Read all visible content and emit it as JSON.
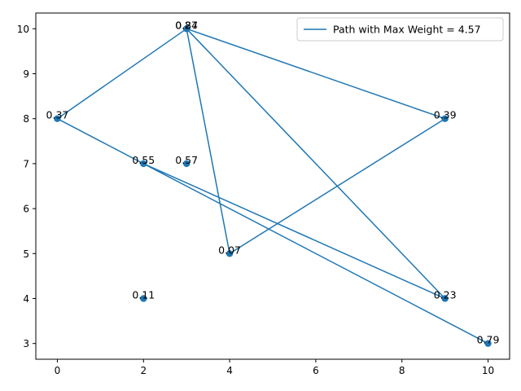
{
  "chart_data": {
    "type": "scatter",
    "title": "",
    "xlabel": "",
    "ylabel": "",
    "xlim": [
      -0.5,
      10.5
    ],
    "ylim": [
      2.65,
      10.35
    ],
    "xticks": [
      0,
      2,
      4,
      6,
      8,
      10
    ],
    "yticks": [
      3,
      4,
      5,
      6,
      7,
      8,
      9,
      10
    ],
    "grid": false,
    "legend_position": "top-right",
    "colors": {
      "series": "#1f77b4",
      "axes": "#000000",
      "label": "#000000"
    },
    "points": [
      {
        "x": 3,
        "y": 10,
        "label": "0.84"
      },
      {
        "x": 3,
        "y": 10,
        "label": "0.27"
      },
      {
        "x": 0,
        "y": 8,
        "label": "0.37"
      },
      {
        "x": 9,
        "y": 8,
        "label": "0.39"
      },
      {
        "x": 2,
        "y": 7,
        "label": "0.55"
      },
      {
        "x": 3,
        "y": 7,
        "label": "0.57"
      },
      {
        "x": 4,
        "y": 5,
        "label": "0.07"
      },
      {
        "x": 2,
        "y": 4,
        "label": "0.11"
      },
      {
        "x": 9,
        "y": 4,
        "label": "0.23"
      },
      {
        "x": 10,
        "y": 3,
        "label": "0.79"
      }
    ],
    "series": [
      {
        "name": "Path with Max Weight = 4.57",
        "type": "line",
        "x": [
          10,
          2,
          9,
          3,
          4,
          9,
          3,
          0,
          2
        ],
        "y": [
          3,
          7,
          4,
          10,
          5,
          8,
          10,
          8,
          7
        ]
      }
    ]
  }
}
